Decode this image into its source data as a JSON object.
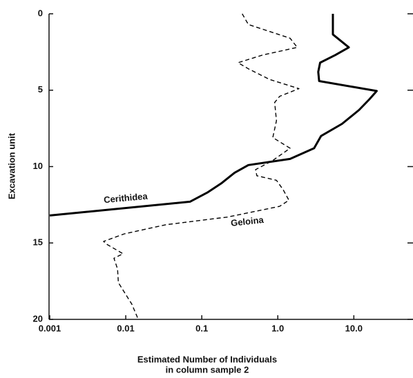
{
  "chart_data": {
    "type": "line",
    "xlabel": [
      "Estimated Number of Individuals",
      "in column sample 2"
    ],
    "ylabel": "Excavation unit",
    "xscale": "log",
    "yinverted": true,
    "xlim": [
      0.001,
      60
    ],
    "xticks": [
      0.001,
      0.01,
      0.1,
      {
        "value": 1,
        "label": "1.0"
      },
      {
        "value": 10,
        "label": "10.0"
      }
    ],
    "ylim": [
      0,
      20
    ],
    "yticks": [
      0,
      5,
      10,
      15,
      20
    ],
    "series": [
      {
        "name": "Cerithidea",
        "color": "#000000",
        "style": "solid",
        "values": [
          5.3,
          5.3,
          8.6,
          5.7,
          3.6,
          3.4,
          3.5,
          20,
          16,
          11.7,
          7,
          3.7,
          3.0,
          1.45,
          0.41,
          0.27,
          0.18,
          0.118,
          0.07,
          0.001
        ],
        "depth": [
          0,
          1.35,
          2.2,
          2.7,
          3.2,
          3.8,
          4.4,
          5.05,
          5.6,
          6.3,
          7.2,
          8.0,
          8.8,
          9.5,
          9.9,
          10.4,
          11.1,
          11.7,
          12.3,
          13.2
        ]
      },
      {
        "name": "Geloina",
        "color": "#000000",
        "style": "dashed",
        "values": [
          0.34,
          0.41,
          1.45,
          1.8,
          0.63,
          0.3,
          0.41,
          0.78,
          1.9,
          1.06,
          0.91,
          0.96,
          0.86,
          1.45,
          0.86,
          0.51,
          0.53,
          0.96,
          1.17,
          1.4,
          1.06,
          0.22,
          0.034,
          0.0096,
          0.0051,
          0.0057,
          0.0092,
          0.007,
          0.0078,
          0.008,
          0.012,
          0.0146
        ],
        "depth": [
          0,
          0.7,
          1.6,
          2.2,
          2.7,
          3.2,
          3.6,
          4.3,
          4.9,
          5.4,
          5.8,
          7.0,
          8.1,
          8.8,
          9.6,
          10.2,
          10.6,
          10.9,
          11.5,
          12.2,
          12.6,
          13.3,
          13.8,
          14.4,
          14.9,
          15.1,
          15.7,
          16.0,
          16.7,
          17.6,
          19.0,
          20
        ]
      }
    ]
  }
}
